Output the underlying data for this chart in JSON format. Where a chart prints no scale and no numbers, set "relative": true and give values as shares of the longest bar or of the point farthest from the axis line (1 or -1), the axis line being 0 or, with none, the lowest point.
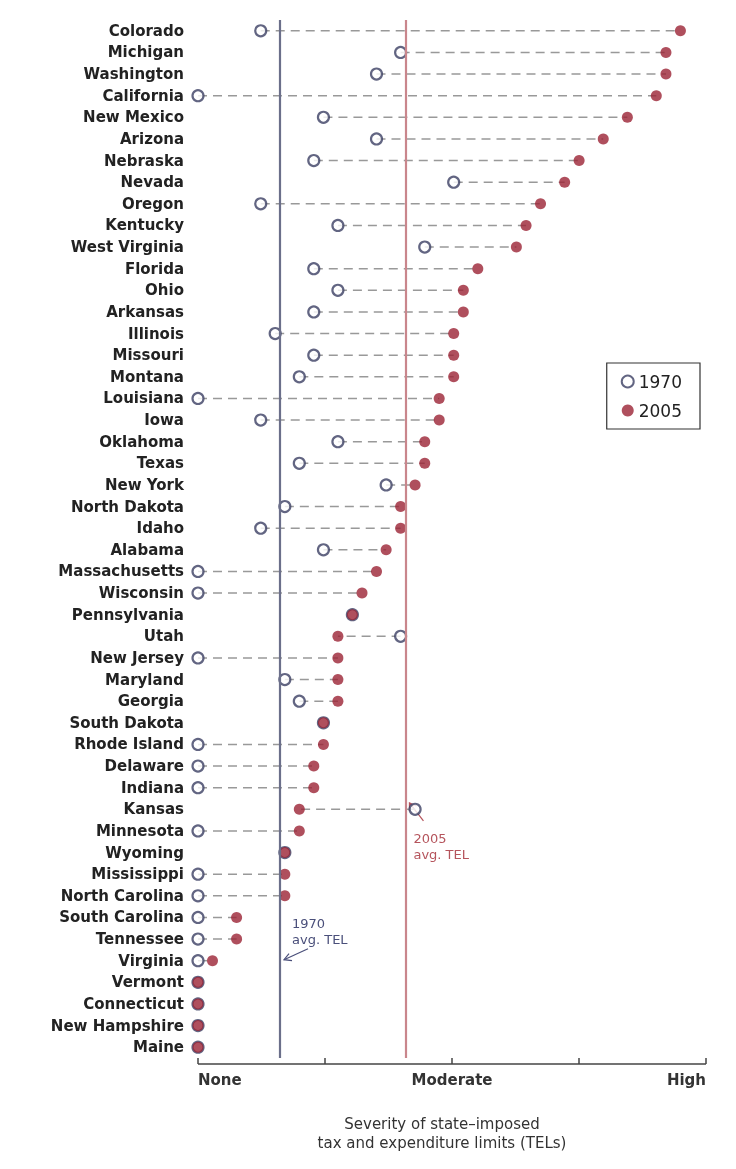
{
  "chart_data": {
    "type": "scatter",
    "xlabel": "Severity of state–imposed\ntax and expenditure limits (TELs)",
    "categories": [
      "Colorado",
      "Michigan",
      "Washington",
      "California",
      "New Mexico",
      "Arizona",
      "Nebraska",
      "Nevada",
      "Oregon",
      "Kentucky",
      "West Virginia",
      "Florida",
      "Ohio",
      "Arkansas",
      "Illinois",
      "Missouri",
      "Montana",
      "Louisiana",
      "Iowa",
      "Oklahoma",
      "Texas",
      "New York",
      "North Dakota",
      "Idaho",
      "Alabama",
      "Massachusetts",
      "Wisconsin",
      "Pennsylvania",
      "Utah",
      "New Jersey",
      "Maryland",
      "Georgia",
      "South Dakota",
      "Rhode Island",
      "Delaware",
      "Indiana",
      "Kansas",
      "Minnesota",
      "Wyoming",
      "Mississippi",
      "North Carolina",
      "South Carolina",
      "Tennessee",
      "Virginia",
      "Vermont",
      "Connecticut",
      "New Hampshire",
      "Maine"
    ],
    "orientation": "horizontal",
    "relative": true,
    "series": [
      {
        "name": "1970",
        "color": "#3b3f63",
        "marker": "circle",
        "values": [
          0.13,
          0.42,
          0.37,
          0,
          0.26,
          0.37,
          0.24,
          0.53,
          0.13,
          0.29,
          0.47,
          0.24,
          0.29,
          0.24,
          0.16,
          0.24,
          0.21,
          0,
          0.13,
          0.29,
          0.21,
          0.39,
          0.18,
          0.13,
          0.26,
          0,
          0,
          0.32,
          0.42,
          0,
          0.18,
          0.21,
          0.26,
          0,
          0,
          0,
          0.45,
          0,
          0.18,
          0,
          0,
          0,
          0,
          0,
          0,
          0,
          0,
          0
        ]
      },
      {
        "name": "2005",
        "color": "#9b2335",
        "marker": "circle",
        "values": [
          1,
          0.97,
          0.97,
          0.95,
          0.89,
          0.84,
          0.79,
          0.76,
          0.71,
          0.68,
          0.66,
          0.58,
          0.55,
          0.55,
          0.53,
          0.53,
          0.53,
          0.5,
          0.5,
          0.47,
          0.47,
          0.45,
          0.42,
          0.42,
          0.39,
          0.37,
          0.34,
          0.32,
          0.29,
          0.29,
          0.29,
          0.29,
          0.26,
          0.26,
          0.24,
          0.24,
          0.21,
          0.21,
          0.18,
          0.18,
          0.18,
          0.08,
          0.08,
          0.03,
          0,
          0,
          0,
          0
        ]
      }
    ],
    "annotations": [
      "None",
      "Moderate",
      "High"
    ],
    "ref_lines": [
      {
        "axis": "x",
        "value": 0.17,
        "label": "1970\navg. TEL",
        "color": "#6b6f8a"
      },
      {
        "axis": "x",
        "value": 0.43,
        "label": "2005\navg. TEL",
        "color": "#c9868c"
      }
    ],
    "legend": "right"
  }
}
